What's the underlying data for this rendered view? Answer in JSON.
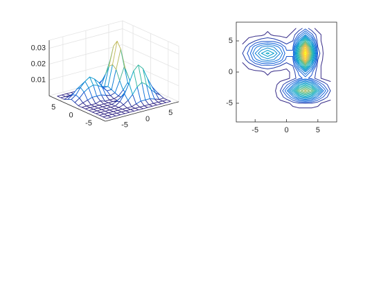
{
  "chart_data": [
    {
      "type": "mesh",
      "view": [
        -37.5,
        30
      ],
      "x": [
        -7,
        -6,
        -5,
        -4,
        -3,
        -2,
        -1,
        0,
        1,
        2,
        3,
        4,
        5,
        6,
        7
      ],
      "y": [
        -7,
        -6,
        -5,
        -4,
        -3,
        -2,
        -1,
        0,
        1,
        2,
        3,
        4,
        5,
        6,
        7
      ],
      "z": [
        [
          0,
          0,
          0,
          0,
          0,
          0,
          0,
          0,
          0,
          0,
          0,
          0,
          0,
          0,
          0
        ],
        [
          0,
          0,
          0,
          0,
          0,
          0,
          0,
          0,
          0,
          0,
          0,
          0,
          0,
          0,
          0
        ],
        [
          0,
          0,
          0,
          0,
          0,
          0,
          0,
          0,
          0.001,
          0.002,
          0.002,
          0.002,
          0.001,
          0,
          0
        ],
        [
          0,
          0,
          0,
          0,
          0,
          0,
          0.001,
          0.003,
          0.006,
          0.01,
          0.012,
          0.01,
          0.006,
          0.003,
          0.001
        ],
        [
          0,
          0,
          0,
          0,
          0,
          0,
          0.002,
          0.006,
          0.012,
          0.019,
          0.022,
          0.019,
          0.012,
          0.006,
          0.002
        ],
        [
          0,
          0,
          0,
          0,
          0,
          0,
          0.001,
          0.003,
          0.006,
          0.011,
          0.013,
          0.011,
          0.006,
          0.003,
          0.001
        ],
        [
          0,
          0,
          0,
          0,
          0,
          0,
          0,
          0,
          0.001,
          0.003,
          0.004,
          0.003,
          0.001,
          0,
          0
        ],
        [
          0,
          0,
          0,
          0,
          0.001,
          0,
          0,
          0,
          0.001,
          0.004,
          0.008,
          0.004,
          0.001,
          0,
          0
        ],
        [
          0,
          0.001,
          0.002,
          0.003,
          0.003,
          0.003,
          0.002,
          0.001,
          0.002,
          0.009,
          0.017,
          0.009,
          0.001,
          0,
          0
        ],
        [
          0.001,
          0.003,
          0.006,
          0.008,
          0.009,
          0.008,
          0.006,
          0.003,
          0.003,
          0.015,
          0.027,
          0.014,
          0.002,
          0,
          0
        ],
        [
          0.002,
          0.004,
          0.008,
          0.011,
          0.013,
          0.011,
          0.008,
          0.004,
          0.004,
          0.017,
          0.031,
          0.017,
          0.003,
          0,
          0
        ],
        [
          0.001,
          0.003,
          0.006,
          0.008,
          0.009,
          0.008,
          0.006,
          0.003,
          0.003,
          0.015,
          0.027,
          0.014,
          0.002,
          0,
          0
        ],
        [
          0,
          0.001,
          0.002,
          0.003,
          0.003,
          0.003,
          0.002,
          0.001,
          0.002,
          0.009,
          0.017,
          0.009,
          0.001,
          0,
          0
        ],
        [
          0,
          0,
          0,
          0,
          0.001,
          0,
          0,
          0,
          0.001,
          0.004,
          0.008,
          0.004,
          0.001,
          0,
          0
        ],
        [
          0,
          0,
          0,
          0,
          0,
          0,
          0,
          0,
          0,
          0.001,
          0.003,
          0.001,
          0,
          0,
          0
        ]
      ],
      "xlim": [
        -8,
        8
      ],
      "ylim": [
        -8,
        8
      ],
      "zlim": [
        0,
        0.035
      ],
      "xticks": [
        -5,
        0,
        5
      ],
      "yticks": [
        -5,
        0,
        5
      ],
      "zticks": [
        0.01,
        0.02,
        0.03
      ],
      "grid": true,
      "colormap": [
        "#352a87",
        "#0f5cdd",
        "#1481d6",
        "#06a4ca",
        "#2eb7a4",
        "#87bf77",
        "#d1bb59",
        "#fec832",
        "#f9fb0e"
      ]
    },
    {
      "type": "contour",
      "x": [
        -7,
        -6,
        -5,
        -4,
        -3,
        -2,
        -1,
        0,
        1,
        2,
        3,
        4,
        5,
        6,
        7
      ],
      "y": [
        -7,
        -6,
        -5,
        -4,
        -3,
        -2,
        -1,
        0,
        1,
        2,
        3,
        4,
        5,
        6,
        7
      ],
      "z": [
        [
          0,
          0,
          0,
          0,
          0,
          0,
          0,
          0,
          0,
          0,
          0,
          0,
          0,
          0,
          0
        ],
        [
          0,
          0,
          0,
          0,
          0,
          0,
          0,
          0,
          0,
          0,
          0,
          0,
          0,
          0,
          0
        ],
        [
          0,
          0,
          0,
          0,
          0,
          0,
          0,
          0,
          0.001,
          0.002,
          0.002,
          0.002,
          0.001,
          0,
          0
        ],
        [
          0,
          0,
          0,
          0,
          0,
          0,
          0.001,
          0.003,
          0.006,
          0.01,
          0.012,
          0.01,
          0.006,
          0.003,
          0.001
        ],
        [
          0,
          0,
          0,
          0,
          0,
          0,
          0.002,
          0.006,
          0.012,
          0.019,
          0.022,
          0.019,
          0.012,
          0.006,
          0.002
        ],
        [
          0,
          0,
          0,
          0,
          0,
          0,
          0.001,
          0.003,
          0.006,
          0.011,
          0.013,
          0.011,
          0.006,
          0.003,
          0.001
        ],
        [
          0,
          0,
          0,
          0,
          0,
          0,
          0,
          0,
          0.001,
          0.003,
          0.004,
          0.003,
          0.001,
          0,
          0
        ],
        [
          0,
          0,
          0,
          0,
          0.001,
          0,
          0,
          0,
          0.001,
          0.004,
          0.008,
          0.004,
          0.001,
          0,
          0
        ],
        [
          0,
          0.001,
          0.002,
          0.003,
          0.003,
          0.003,
          0.002,
          0.001,
          0.002,
          0.009,
          0.017,
          0.009,
          0.001,
          0,
          0
        ],
        [
          0.001,
          0.003,
          0.006,
          0.008,
          0.009,
          0.008,
          0.006,
          0.003,
          0.003,
          0.015,
          0.027,
          0.014,
          0.002,
          0,
          0
        ],
        [
          0.002,
          0.004,
          0.008,
          0.011,
          0.013,
          0.011,
          0.008,
          0.004,
          0.004,
          0.017,
          0.031,
          0.017,
          0.003,
          0,
          0
        ],
        [
          0.001,
          0.003,
          0.006,
          0.008,
          0.009,
          0.008,
          0.006,
          0.003,
          0.003,
          0.015,
          0.027,
          0.014,
          0.002,
          0,
          0
        ],
        [
          0,
          0.001,
          0.002,
          0.003,
          0.003,
          0.003,
          0.002,
          0.001,
          0.002,
          0.009,
          0.017,
          0.009,
          0.001,
          0,
          0
        ],
        [
          0,
          0,
          0,
          0,
          0.001,
          0,
          0,
          0,
          0.001,
          0.004,
          0.008,
          0.004,
          0.001,
          0,
          0
        ],
        [
          0,
          0,
          0,
          0,
          0,
          0,
          0,
          0,
          0,
          0.001,
          0.003,
          0.001,
          0,
          0,
          0
        ]
      ],
      "levels": [
        0.0005,
        0.002,
        0.0035,
        0.005,
        0.0065,
        0.008,
        0.0095,
        0.011,
        0.0125,
        0.014,
        0.0155,
        0.017,
        0.0185,
        0.02,
        0.0215,
        0.023,
        0.0245,
        0.026,
        0.0275,
        0.029,
        0.0305
      ],
      "xlim": [
        -8,
        8
      ],
      "ylim": [
        -8,
        8
      ],
      "xticks": [
        -5,
        0,
        5
      ],
      "yticks": [
        -5,
        0,
        5
      ],
      "colormap": [
        "#352a87",
        "#0f5cdd",
        "#1481d6",
        "#06a4ca",
        "#2eb7a4",
        "#87bf77",
        "#d1bb59",
        "#fec832",
        "#f9fb0e"
      ]
    }
  ]
}
